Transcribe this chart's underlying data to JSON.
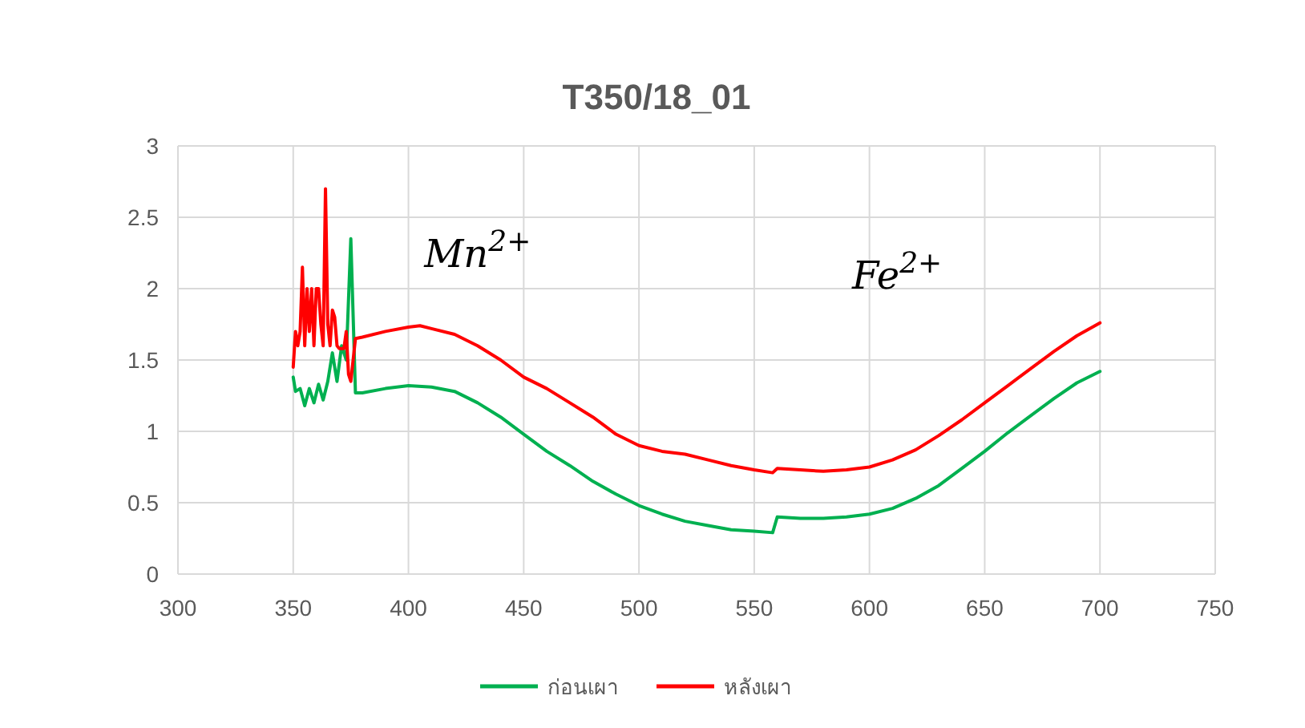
{
  "chart_data": {
    "type": "line",
    "title": "T350/18_01",
    "xlim": [
      300,
      750
    ],
    "xticks": [
      300,
      350,
      400,
      450,
      500,
      550,
      600,
      650,
      700,
      750
    ],
    "ylim": [
      0,
      3
    ],
    "yticks": [
      0,
      0.5,
      1,
      1.5,
      2,
      2.5,
      3
    ],
    "grid": true,
    "legend": "bottom",
    "marker": "none",
    "line_style": "solid",
    "annotations": [
      "Mn$^{2+}$",
      "Fe$^{2+}$"
    ],
    "series": [
      {
        "name": "ก่อนเผา",
        "color": "#00b050",
        "x": [
          350,
          351,
          353,
          355,
          357,
          359,
          361,
          363,
          365,
          367,
          369,
          371,
          373,
          375,
          377,
          380,
          390,
          400,
          410,
          420,
          430,
          440,
          450,
          460,
          470,
          480,
          490,
          500,
          510,
          520,
          530,
          540,
          550,
          558,
          560,
          570,
          580,
          590,
          600,
          610,
          620,
          630,
          640,
          650,
          660,
          670,
          680,
          690,
          700
        ],
        "values": [
          1.38,
          1.28,
          1.3,
          1.18,
          1.3,
          1.2,
          1.33,
          1.22,
          1.35,
          1.55,
          1.35,
          1.6,
          1.5,
          2.35,
          1.27,
          1.27,
          1.3,
          1.32,
          1.31,
          1.28,
          1.2,
          1.1,
          0.98,
          0.86,
          0.76,
          0.65,
          0.56,
          0.48,
          0.42,
          0.37,
          0.34,
          0.31,
          0.3,
          0.29,
          0.4,
          0.39,
          0.39,
          0.4,
          0.42,
          0.46,
          0.53,
          0.62,
          0.74,
          0.86,
          0.99,
          1.11,
          1.23,
          1.34,
          1.42
        ]
      },
      {
        "name": "หลังเผา",
        "color": "#ff0000",
        "x": [
          350,
          351,
          352,
          353,
          354,
          355,
          356,
          357,
          358,
          359,
          360,
          361,
          362,
          363,
          364,
          365,
          366,
          367,
          368,
          369,
          370,
          372,
          373,
          374,
          375,
          377,
          380,
          390,
          400,
          405,
          410,
          420,
          430,
          440,
          450,
          460,
          470,
          480,
          490,
          500,
          510,
          520,
          530,
          540,
          550,
          558,
          560,
          570,
          580,
          590,
          600,
          610,
          620,
          630,
          640,
          650,
          660,
          670,
          680,
          690,
          700
        ],
        "values": [
          1.45,
          1.7,
          1.6,
          1.7,
          2.15,
          1.6,
          2.0,
          1.7,
          2.0,
          1.6,
          2.0,
          2.0,
          1.75,
          1.6,
          2.7,
          1.75,
          1.6,
          1.85,
          1.8,
          1.6,
          1.58,
          1.58,
          1.7,
          1.4,
          1.35,
          1.65,
          1.66,
          1.7,
          1.73,
          1.74,
          1.72,
          1.68,
          1.6,
          1.5,
          1.38,
          1.3,
          1.2,
          1.1,
          0.98,
          0.9,
          0.86,
          0.84,
          0.8,
          0.76,
          0.73,
          0.71,
          0.74,
          0.73,
          0.72,
          0.73,
          0.75,
          0.8,
          0.87,
          0.97,
          1.08,
          1.2,
          1.32,
          1.44,
          1.56,
          1.67,
          1.76
        ]
      }
    ]
  }
}
